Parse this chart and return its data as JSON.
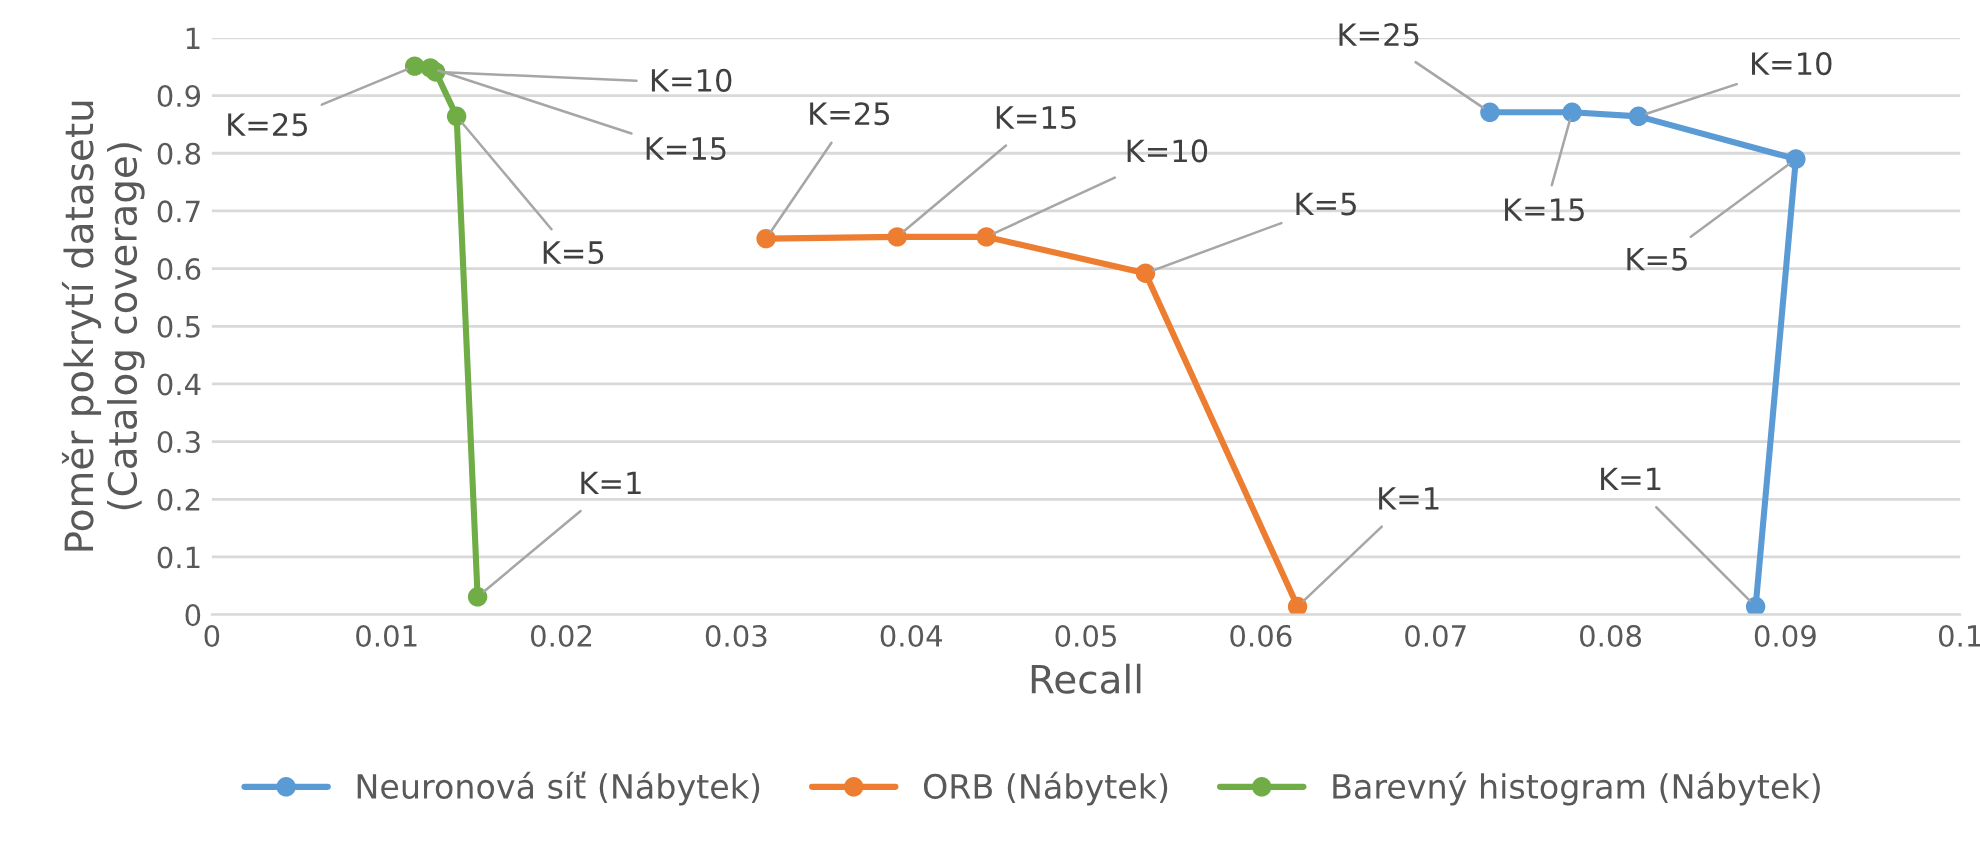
{
  "chart_data": {
    "type": "line",
    "xlabel": "Recall",
    "ylabel": "Poměr pokrytí datasetu\n(Catalog coverage)",
    "xlim": [
      0,
      0.1
    ],
    "xticks": [
      0,
      0.01,
      0.02,
      0.03,
      0.04,
      0.05,
      0.06,
      0.07,
      0.08,
      0.09,
      0.1
    ],
    "ylim": [
      0,
      1
    ],
    "yticks": [
      0,
      0.1,
      0.2,
      0.3,
      0.4,
      0.5,
      0.6,
      0.7,
      0.8,
      0.9,
      1
    ],
    "grid": "y",
    "legend": "bottom",
    "marker": "circle",
    "line_style": "solid",
    "series": [
      {
        "name": "Neuronová síť (Nábytek)",
        "color": "#5b9bd5",
        "x": [
          0.0883,
          0.0906,
          0.0816,
          0.0778,
          0.0731
        ],
        "values": [
          0.014,
          0.79,
          0.864,
          0.871,
          0.871
        ]
      },
      {
        "name": "ORB (Nábytek)",
        "color": "#ed7d31",
        "x": [
          0.0621,
          0.0534,
          0.0443,
          0.0392,
          0.0317
        ],
        "values": [
          0.014,
          0.592,
          0.655,
          0.655,
          0.652
        ]
      },
      {
        "name": "Barevný histogram (Nábytek)",
        "color": "#70ad47",
        "x": [
          0.0152,
          0.014,
          0.0128,
          0.0125,
          0.0116
        ],
        "values": [
          0.031,
          0.864,
          0.941,
          0.948,
          0.951
        ]
      }
    ],
    "annotations": [
      {
        "text": "K=1",
        "x": 0.0883,
        "y": 0.014
      },
      {
        "text": "K=5",
        "x": 0.0906,
        "y": 0.79
      },
      {
        "text": "K=10",
        "x": 0.0816,
        "y": 0.864
      },
      {
        "text": "K=15",
        "x": 0.0778,
        "y": 0.871
      },
      {
        "text": "K=25",
        "x": 0.0731,
        "y": 0.871
      },
      {
        "text": "K=1",
        "x": 0.0621,
        "y": 0.014
      },
      {
        "text": "K=5",
        "x": 0.0534,
        "y": 0.592
      },
      {
        "text": "K=10",
        "x": 0.0443,
        "y": 0.655
      },
      {
        "text": "K=15",
        "x": 0.0392,
        "y": 0.655
      },
      {
        "text": "K=25",
        "x": 0.0317,
        "y": 0.652
      },
      {
        "text": "K=1",
        "x": 0.0152,
        "y": 0.031
      },
      {
        "text": "K=5",
        "x": 0.014,
        "y": 0.864
      },
      {
        "text": "K=10",
        "x": 0.0128,
        "y": 0.941
      },
      {
        "text": "K=15",
        "x": 0.0125,
        "y": 0.948
      },
      {
        "text": "K=25",
        "x": 0.0116,
        "y": 0.951
      }
    ]
  }
}
